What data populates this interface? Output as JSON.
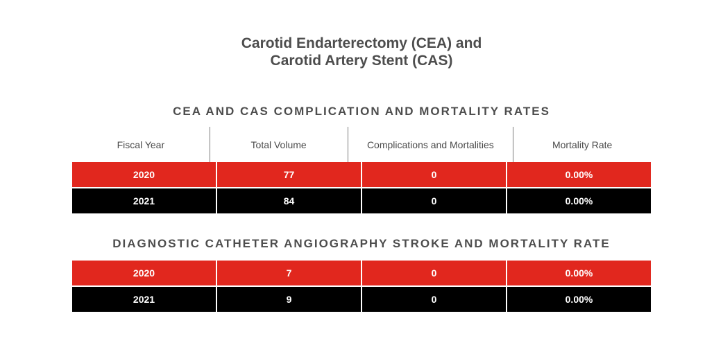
{
  "title": {
    "line1": "Carotid Endarterectomy (CEA) and",
    "line2": "Carotid Artery Stent (CAS)"
  },
  "section1": {
    "heading": "CEA AND CAS COMPLICATION AND MORTALITY RATES",
    "columns": [
      "Fiscal Year",
      "Total Volume",
      "Complications and Mortalities",
      "Mortality Rate"
    ],
    "rows": [
      [
        "2020",
        "77",
        "0",
        "0.00%"
      ],
      [
        "2021",
        "84",
        "0",
        "0.00%"
      ]
    ]
  },
  "section2": {
    "heading": "DIAGNOSTIC CATHETER ANGIOGRAPHY STROKE AND MORTALITY RATE",
    "rows": [
      [
        "2020",
        "7",
        "0",
        "0.00%"
      ],
      [
        "2021",
        "9",
        "0",
        "0.00%"
      ]
    ]
  },
  "colors": {
    "accent_red": "#e1271e",
    "row_black": "#000000",
    "heading_text": "#4d4d4d"
  }
}
